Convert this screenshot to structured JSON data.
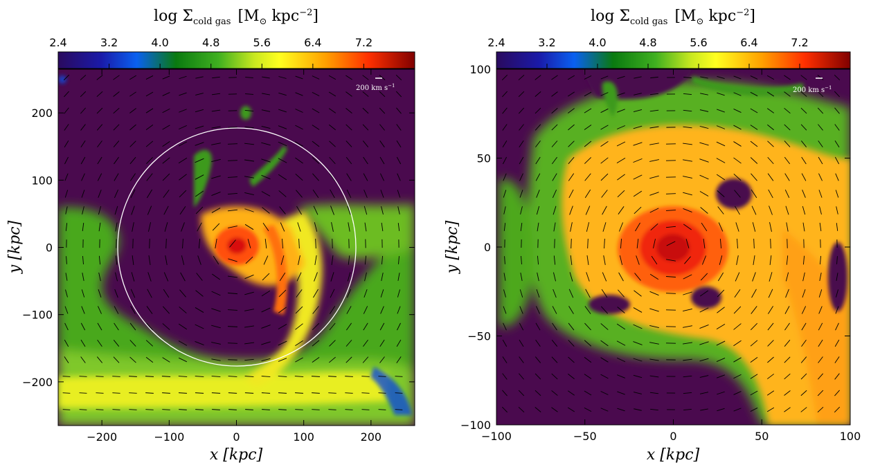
{
  "chart_data": [
    {
      "type": "heatmap",
      "title": "log Σ_cold gas [M_⊙ kpc^−2]",
      "title_parts": {
        "prefix": "log Σ",
        "subscript": "cold gas",
        "unit_open": "[M",
        "unit_sub": "⊙",
        "unit_mid": " kpc",
        "unit_sup": "−2",
        "unit_close": "]"
      },
      "xlabel": "x [kpc]",
      "ylabel": "y [kpc]",
      "xlim": [
        -265,
        265
      ],
      "ylim": [
        -265,
        265
      ],
      "xticks": [
        "−200",
        "−100",
        "0",
        "100",
        "200"
      ],
      "xtick_values": [
        -200,
        -100,
        0,
        100,
        200
      ],
      "yticks": [
        "−200",
        "−100",
        "0",
        "100",
        "200"
      ],
      "ytick_values": [
        -200,
        -100,
        0,
        100,
        200
      ],
      "colorbar": {
        "ticks": [
          "2.4",
          "3.2",
          "4.0",
          "4.8",
          "5.6",
          "6.4",
          "7.2"
        ],
        "values": [
          2.4,
          3.2,
          4.0,
          4.8,
          5.6,
          6.4,
          7.2
        ],
        "range": [
          2.4,
          8.0
        ]
      },
      "velocity_key": "200 km s^−1",
      "velocity_key_parts": {
        "text": "200 km s",
        "sup": "−1"
      },
      "circle_radius_kpc": 175,
      "circle_center": [
        0,
        0
      ],
      "grid": false
    },
    {
      "type": "heatmap",
      "title": "log Σ_cold gas [M_⊙ kpc^−2]",
      "title_parts": {
        "prefix": "log Σ",
        "subscript": "cold gas",
        "unit_open": "[M",
        "unit_sub": "⊙",
        "unit_mid": " kpc",
        "unit_sup": "−2",
        "unit_close": "]"
      },
      "xlabel": "x [kpc]",
      "ylabel": "y [kpc]",
      "xlim": [
        -100,
        100
      ],
      "ylim": [
        -100,
        100
      ],
      "xticks": [
        "−100",
        "−50",
        "0",
        "50",
        "100"
      ],
      "xtick_values": [
        -100,
        -50,
        0,
        50,
        100
      ],
      "yticks": [
        "−100",
        "−50",
        "0",
        "50",
        "100"
      ],
      "ytick_values": [
        -100,
        -50,
        0,
        50,
        100
      ],
      "colorbar": {
        "ticks": [
          "2.4",
          "3.2",
          "4.0",
          "4.8",
          "5.6",
          "6.4",
          "7.2"
        ],
        "values": [
          2.4,
          3.2,
          4.0,
          4.8,
          5.6,
          6.4,
          7.2
        ],
        "range": [
          2.4,
          8.0
        ]
      },
      "velocity_key": "200 km s^−1",
      "velocity_key_parts": {
        "text": "200 km s",
        "sup": "−1"
      },
      "grid": false
    }
  ],
  "colors": {
    "background_purple": "#4a0a4e",
    "colormap_stops": [
      "#2a0a5e",
      "#1020c8",
      "#0a60f0",
      "#0a7a10",
      "#40b020",
      "#b0e020",
      "#ffff20",
      "#ffa000",
      "#ff4000",
      "#c00000",
      "#700000"
    ]
  }
}
